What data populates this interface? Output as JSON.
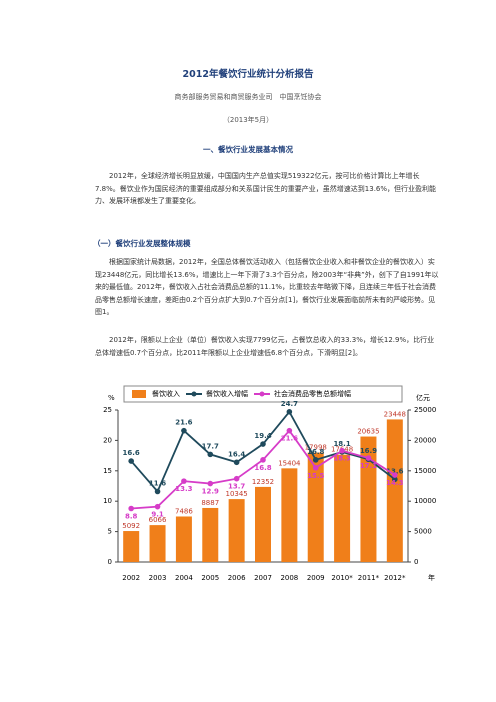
{
  "header": {
    "title": "2012年餐饮行业统计分析报告",
    "authors": "商务部服务贸易和商贸服务业司　中国烹饪协会",
    "date": "（2013年5月）"
  },
  "section_heading": "一、餐饮行业发展基本情况",
  "paragraphs": [
    "2012年，全球经济增长明显放缓，中国国内生产总值实现519322亿元，按可比价格计算比上年增长7.8%。餐饮业作为国民经济的重要组成部分和关系国计民生的重要产业，虽然增速达到13.6%，但行业盈利能力、发展环境都发生了重要变化。"
  ],
  "subheading": "（一）餐饮行业发展整体规模",
  "sub_paragraphs": [
    "根据国家统计局数据，2012年，全国总体餐饮活动收入（包括餐饮企业收入和非餐饮企业的餐饮收入）实现23448亿元，同比增长13.6%，增速比上一年下滑了3.3个百分点，除2003年“非典”外，创下了自1991年以来的最低值。2012年，餐饮收入占社会消费品总额的11.1%，比重较去年略微下降，且连续三年低于社会消费品零售总额增长速度，差距由0.2个百分点扩大到0.7个百分点[1]，餐饮行业发展面临前所未有的严峻形势。见图1。",
    "2012年，限额以上企业（单位）餐饮收入实现7799亿元，占餐饮总收入的33.3%，增长12.9%，比行业总体增速低0.7个百分点，比2011年限额以上企业增速低6.8个百分点，下滑明显[2]。"
  ],
  "chart_data": {
    "type": "combo",
    "categories": [
      "2002",
      "2003",
      "2004",
      "2005",
      "2006",
      "2007",
      "2008",
      "2009",
      "2010*",
      "2011*",
      "2012*"
    ],
    "series": [
      {
        "name": "餐饮收入",
        "type": "bar",
        "axis": "y2",
        "color": "#f07f1a",
        "values": [
          5092,
          6066,
          7486,
          8887,
          10345,
          12352,
          15404,
          17998,
          17648,
          20635,
          23448
        ]
      },
      {
        "name": "餐饮收入增幅",
        "type": "line",
        "color": "#1f4a5c",
        "values": [
          16.6,
          11.6,
          21.6,
          17.7,
          16.4,
          19.4,
          24.7,
          16.8,
          18.1,
          16.9,
          13.6
        ]
      },
      {
        "name": "社会消费品零售总额增幅",
        "type": "line",
        "color": "#d63cc8",
        "values": [
          8.8,
          9.1,
          13.3,
          12.9,
          13.7,
          16.8,
          21.6,
          15.5,
          18.3,
          17.1,
          14.3
        ]
      }
    ],
    "y_label": "%",
    "y2_label": "亿元",
    "x_label": "年",
    "ylim": [
      0,
      25
    ],
    "yticks": [
      0,
      5,
      10,
      15,
      20,
      25
    ],
    "y2lim": [
      0,
      25000
    ],
    "y2ticks": [
      0,
      5000,
      10000,
      15000,
      20000,
      25000
    ],
    "grid": false
  }
}
